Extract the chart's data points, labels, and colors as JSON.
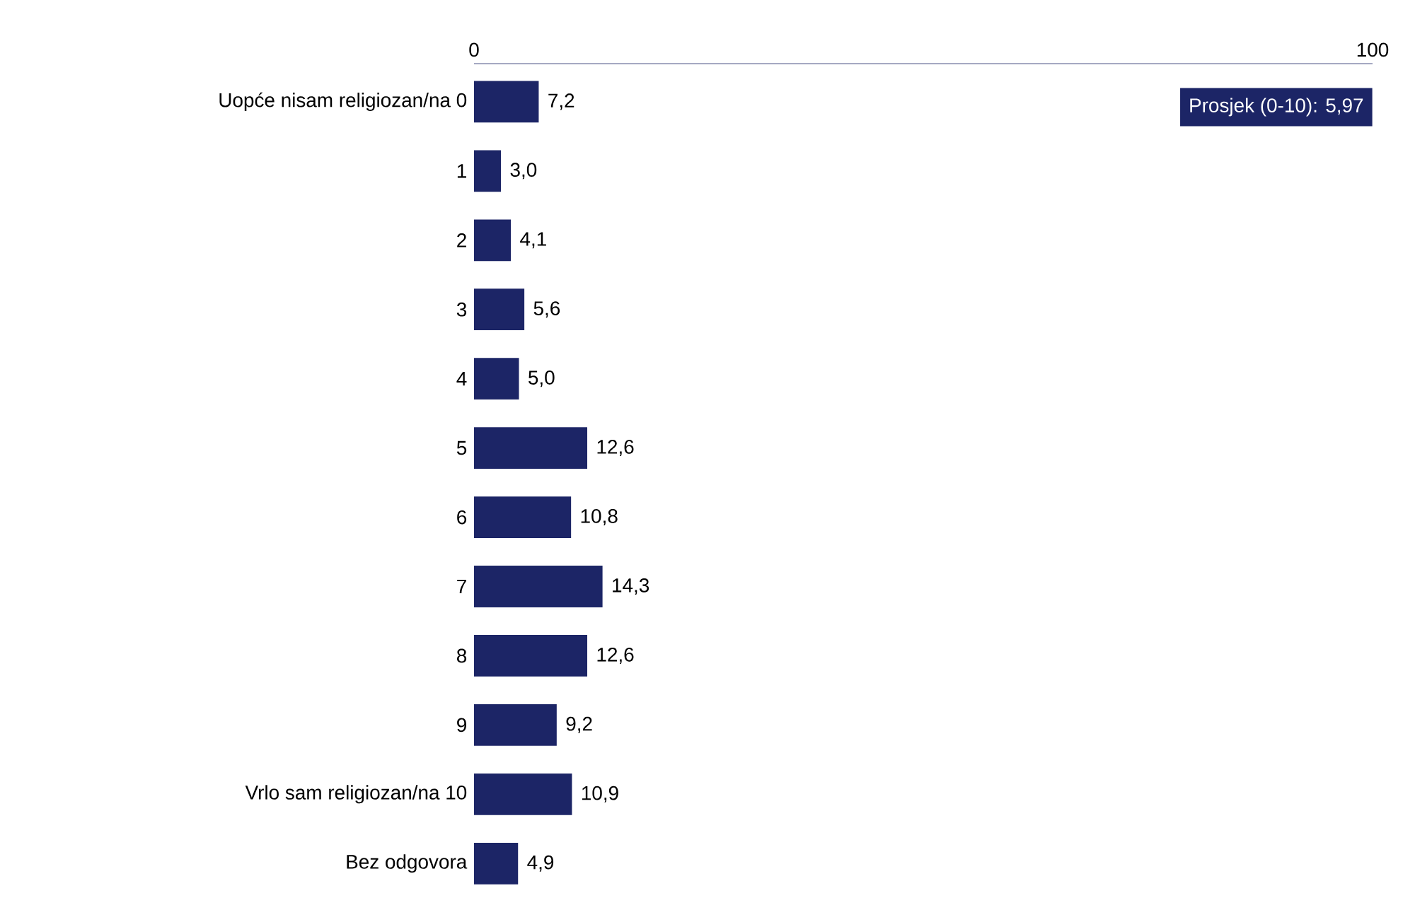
{
  "chart_data": {
    "type": "bar",
    "orientation": "horizontal",
    "categories": [
      "Uopće nisam religiozan/na 0",
      "1",
      "2",
      "3",
      "4",
      "5",
      "6",
      "7",
      "8",
      "9",
      "Vrlo sam religiozan/na 10",
      "Bez odgovora"
    ],
    "values": [
      7.2,
      3.0,
      4.1,
      5.6,
      5.0,
      12.6,
      10.8,
      14.3,
      12.6,
      9.2,
      10.9,
      4.9
    ],
    "value_labels": [
      "7,2",
      "3,0",
      "4,1",
      "5,6",
      "5,0",
      "12,6",
      "10,8",
      "14,3",
      "12,6",
      "9,2",
      "10,9",
      "4,9"
    ],
    "color": "#1c2566",
    "xlim": [
      0,
      100
    ],
    "xticks": [
      0,
      100
    ],
    "annotations": [
      "Prosjek (0-10): 5,97"
    ]
  }
}
